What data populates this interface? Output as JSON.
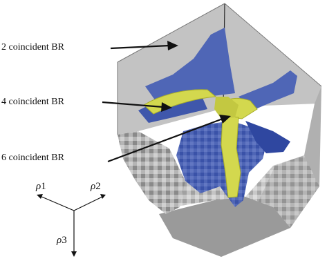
{
  "annotations": [
    {
      "label": "2 coincident BR"
    },
    {
      "label": "4 coincident BR"
    },
    {
      "label": "6 coincident BR"
    }
  ],
  "axes": [
    {
      "symbol": "ρ",
      "index": "1"
    },
    {
      "symbol": "ρ",
      "index": "2"
    },
    {
      "symbol": "ρ",
      "index": "3"
    }
  ],
  "colors": {
    "cube_light": "#c3c3c3",
    "cube_mid": "#adadad",
    "cube_dark": "#8e8e8e",
    "pattern_grey": "#7d7d7d",
    "sheet_blue": "#4f66b6",
    "sheet_blue_dark": "#2f47a0",
    "spine_yellow": "#d3d84e",
    "spine_yellow_dark": "#a9ae2a",
    "arrow": "#111111"
  }
}
